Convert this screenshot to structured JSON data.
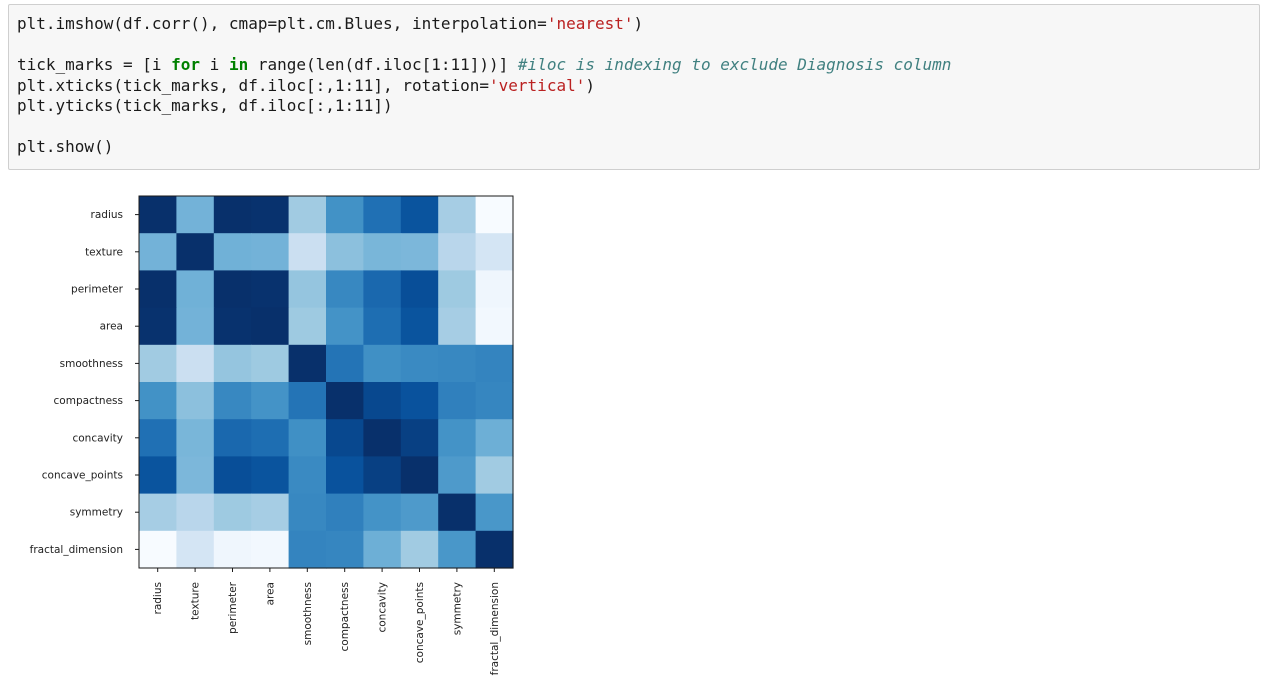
{
  "code_cell": {
    "lines": [
      [
        {
          "t": "plt.imshow(df.corr(), cmap=plt.cm.Blues, interpolation="
        },
        {
          "t": "'nearest'",
          "c": "str"
        },
        {
          "t": ")"
        }
      ],
      [],
      [
        {
          "t": "tick_marks = [i "
        },
        {
          "t": "for",
          "c": "kw"
        },
        {
          "t": " i "
        },
        {
          "t": "in",
          "c": "kw"
        },
        {
          "t": " range(len(df.iloc[1:11]))] "
        },
        {
          "t": "#iloc is indexing to exclude Diagnosis column",
          "c": "cm"
        }
      ],
      [
        {
          "t": "plt.xticks(tick_marks, df.iloc[:,1:11], rotation="
        },
        {
          "t": "'vertical'",
          "c": "str"
        },
        {
          "t": ")"
        }
      ],
      [
        {
          "t": "plt.yticks(tick_marks, df.iloc[:,1:11])"
        }
      ],
      [],
      [
        {
          "t": "plt.show()"
        }
      ]
    ]
  },
  "chart_data": {
    "type": "heatmap",
    "colormap": "Blues",
    "title": "",
    "xlabel": "",
    "ylabel": "",
    "labels": [
      "radius",
      "texture",
      "perimeter",
      "area",
      "smoothness",
      "compactness",
      "concavity",
      "concave_points",
      "symmetry",
      "fractal_dimension"
    ],
    "matrix": [
      [
        1.0,
        0.32,
        1.0,
        0.99,
        0.17,
        0.51,
        0.68,
        0.82,
        0.15,
        -0.31
      ],
      [
        0.32,
        1.0,
        0.33,
        0.32,
        -0.02,
        0.24,
        0.3,
        0.29,
        0.07,
        -0.08
      ],
      [
        1.0,
        0.33,
        1.0,
        0.99,
        0.21,
        0.56,
        0.72,
        0.85,
        0.18,
        -0.26
      ],
      [
        0.99,
        0.32,
        0.99,
        1.0,
        0.18,
        0.5,
        0.69,
        0.82,
        0.15,
        -0.28
      ],
      [
        0.17,
        -0.02,
        0.21,
        0.18,
        1.0,
        0.66,
        0.52,
        0.55,
        0.56,
        0.58
      ],
      [
        0.51,
        0.24,
        0.56,
        0.5,
        0.66,
        1.0,
        0.88,
        0.83,
        0.6,
        0.57
      ],
      [
        0.68,
        0.3,
        0.72,
        0.69,
        0.52,
        0.88,
        1.0,
        0.92,
        0.5,
        0.34
      ],
      [
        0.82,
        0.29,
        0.85,
        0.82,
        0.55,
        0.83,
        0.92,
        1.0,
        0.46,
        0.17
      ],
      [
        0.15,
        0.07,
        0.18,
        0.15,
        0.56,
        0.6,
        0.5,
        0.46,
        1.0,
        0.48
      ],
      [
        -0.31,
        -0.08,
        -0.26,
        -0.28,
        0.58,
        0.57,
        0.34,
        0.17,
        0.48,
        1.0
      ]
    ],
    "vmin": -0.31,
    "vmax": 1.0
  }
}
